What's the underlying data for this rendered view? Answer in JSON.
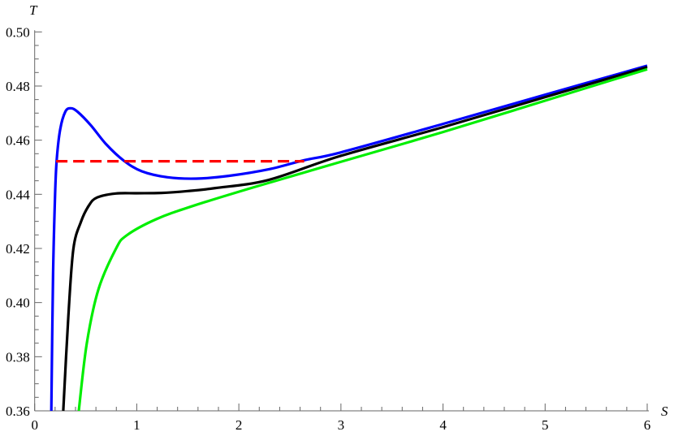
{
  "chart_data": {
    "type": "line",
    "title": "",
    "xlabel": "S",
    "ylabel": "T",
    "xlim": [
      0,
      6
    ],
    "ylim": [
      0.36,
      0.5
    ],
    "grid": false,
    "xticks": [
      "0",
      "1",
      "2",
      "3",
      "4",
      "5",
      "6"
    ],
    "yticks": [
      "0.36",
      "0.38",
      "0.40",
      "0.42",
      "0.44",
      "0.46",
      "0.48",
      "0.50"
    ],
    "series": [
      {
        "color": "#0000ff",
        "style": "solid",
        "x": [
          0.163,
          0.18,
          0.2,
          0.216,
          0.25,
          0.3,
          0.353,
          0.42,
          0.55,
          0.7,
          0.874,
          1.05,
          1.3,
          1.584,
          1.9,
          2.3,
          2.64,
          3.0,
          4.0,
          5.0,
          6.0
        ],
        "y": [
          0.36,
          0.41,
          0.44,
          0.4528,
          0.464,
          0.4705,
          0.4718,
          0.4705,
          0.4655,
          0.4585,
          0.4524,
          0.4485,
          0.4463,
          0.4458,
          0.4468,
          0.4493,
          0.4526,
          0.4555,
          0.466,
          0.4768,
          0.4875
        ]
      },
      {
        "color": "#000000",
        "style": "solid",
        "x": [
          0.28,
          0.33,
          0.379,
          0.453,
          0.53,
          0.61,
          0.795,
          1.0,
          1.24,
          1.5,
          1.77,
          2.29,
          2.98,
          4.0,
          5.0,
          6.0
        ],
        "y": [
          0.36,
          0.395,
          0.4198,
          0.4298,
          0.4358,
          0.4388,
          0.4403,
          0.4404,
          0.4405,
          0.4412,
          0.4423,
          0.4453,
          0.454,
          0.4648,
          0.4759,
          0.487
        ]
      },
      {
        "color": "#00ee00",
        "style": "solid",
        "x": [
          0.432,
          0.51,
          0.624,
          0.795,
          0.9,
          1.19,
          1.558,
          2.163,
          2.98,
          4.0,
          5.0,
          6.0
        ],
        "y": [
          0.36,
          0.3848,
          0.4048,
          0.4198,
          0.4248,
          0.4308,
          0.4358,
          0.4428,
          0.4518,
          0.463,
          0.4746,
          0.4862
        ]
      },
      {
        "color": "#ff0000",
        "style": "dashed",
        "x": [
          0.21,
          2.64
        ],
        "y": [
          0.4522,
          0.4522
        ]
      }
    ]
  }
}
